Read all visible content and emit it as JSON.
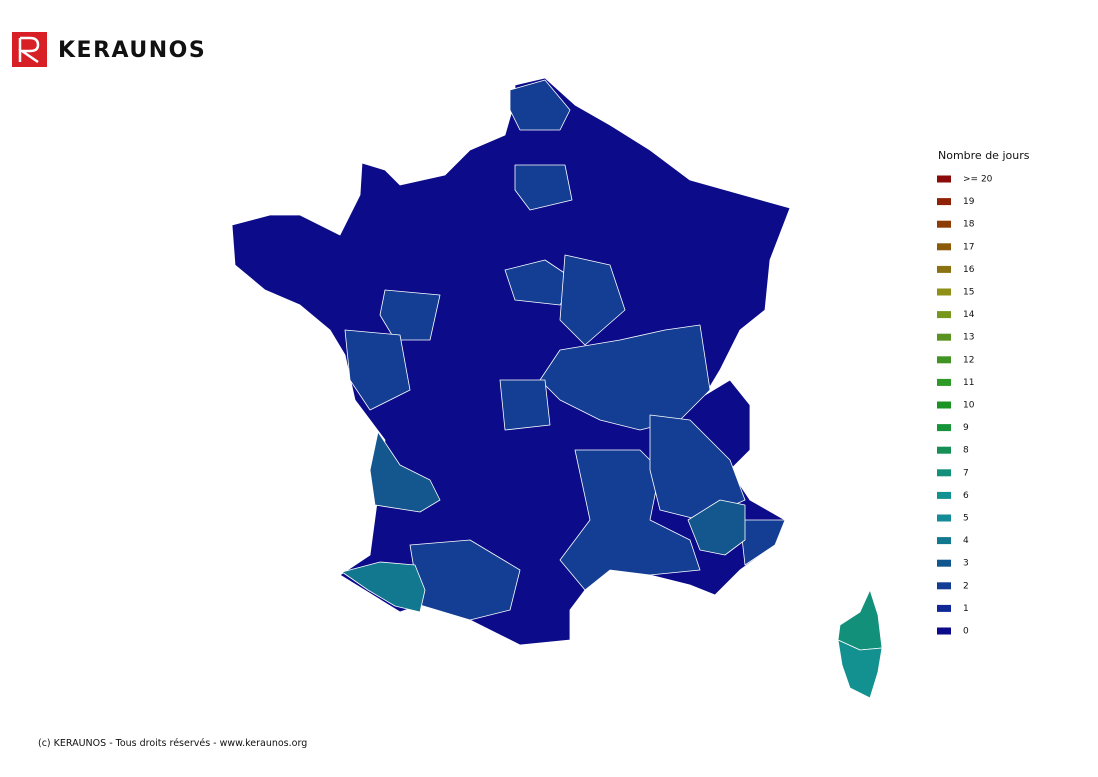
{
  "header": {
    "logo_text": "KERAUNOS"
  },
  "legend": {
    "title": "Nombre de jours",
    "items": [
      {
        "label": ">= 20",
        "color": "#8b0a0a"
      },
      {
        "label": "19",
        "color": "#8f2206"
      },
      {
        "label": "18",
        "color": "#8c3c05"
      },
      {
        "label": "17",
        "color": "#8a5a08"
      },
      {
        "label": "16",
        "color": "#8a7212"
      },
      {
        "label": "15",
        "color": "#8e9018"
      },
      {
        "label": "14",
        "color": "#76961c"
      },
      {
        "label": "13",
        "color": "#5a9320"
      },
      {
        "label": "12",
        "color": "#419424"
      },
      {
        "label": "11",
        "color": "#2c9a24"
      },
      {
        "label": "10",
        "color": "#1a9324"
      },
      {
        "label": "9",
        "color": "#15943a"
      },
      {
        "label": "8",
        "color": "#158f56"
      },
      {
        "label": "7",
        "color": "#12907a"
      },
      {
        "label": "6",
        "color": "#139090"
      },
      {
        "label": "5",
        "color": "#138c98"
      },
      {
        "label": "4",
        "color": "#12788f"
      },
      {
        "label": "3",
        "color": "#12568f"
      },
      {
        "label": "2",
        "color": "#133e94"
      },
      {
        "label": "1",
        "color": "#0f2896"
      },
      {
        "label": "0",
        "color": "#0a0a8a"
      }
    ]
  },
  "footer": {
    "text": "(c) KERAUNOS - Tous droits réservés - www.keraunos.org"
  }
}
